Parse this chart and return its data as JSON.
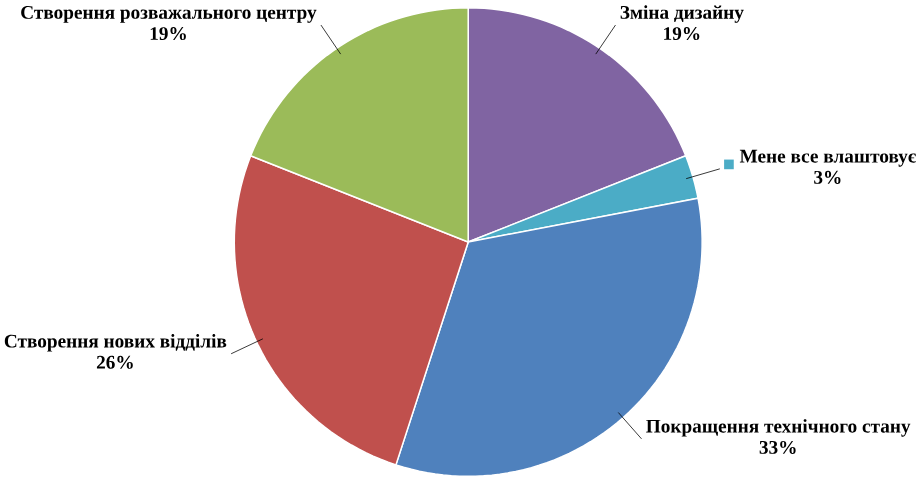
{
  "chart_data": {
    "type": "pie",
    "categories": [
      "Зміна дизайну",
      "Мене все влаштовує",
      "Покращення технічного стану",
      "Створення нових відділів",
      "Створення розважального центру"
    ],
    "values": [
      19,
      3,
      33,
      26,
      19
    ],
    "value_labels": [
      "19%",
      "3%",
      "33%",
      "26%",
      "19%"
    ],
    "colors": [
      "#8064a2",
      "#4bacc6",
      "#4f81bd",
      "#c0504d",
      "#9bbb59"
    ]
  }
}
